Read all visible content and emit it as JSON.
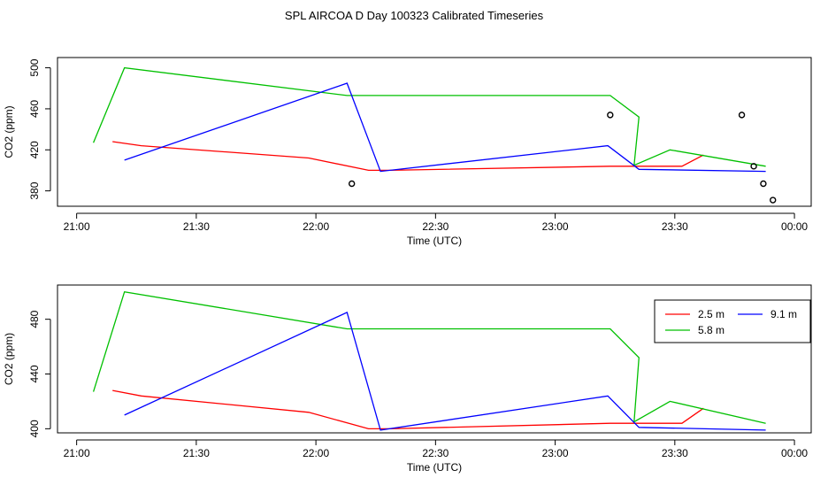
{
  "title": "SPL AIRCOA D  Day 100323  Calibrated Timeseries",
  "colors": {
    "2.5 m": "#ff0000",
    "5.8 m": "#00c000",
    "9.1 m": "#0000ff",
    "axes": "#000000"
  },
  "chart_data": [
    {
      "type": "line",
      "title": "SPL AIRCOA D  Day 100323  Calibrated Timeseries",
      "xlabel": "Time (UTC)",
      "ylabel": "CO2 (ppm)",
      "x_unit": "hours UTC",
      "xlim": [
        20.92,
        24.07
      ],
      "ylim": [
        365,
        510
      ],
      "x_ticks": [
        21.0,
        21.5,
        22.0,
        22.5,
        23.0,
        23.5,
        24.0
      ],
      "x_tick_labels": [
        "21:00",
        "21:30",
        "22:00",
        "22:30",
        "23:00",
        "23:30",
        "00:00"
      ],
      "y_ticks": [
        380,
        420,
        460,
        500
      ],
      "y_tick_labels": [
        "380",
        "420",
        "460",
        "500"
      ],
      "grid": false,
      "series": [
        {
          "name": "2.5 m",
          "color": "#ff0000",
          "x": [
            21.15,
            21.27,
            21.97,
            22.22,
            22.31,
            23.23,
            23.53,
            23.62
          ],
          "y": [
            428,
            424,
            412,
            400,
            400,
            404,
            404,
            415
          ]
        },
        {
          "name": "5.8 m",
          "color": "#00c000",
          "x": [
            21.07,
            21.2,
            22.13,
            23.23,
            23.35,
            23.33,
            23.48,
            23.88
          ],
          "y": [
            427,
            500,
            473,
            473,
            452,
            405,
            420,
            404
          ]
        },
        {
          "name": "9.1 m",
          "color": "#0000ff",
          "x": [
            21.2,
            22.13,
            22.27,
            23.22,
            23.35,
            23.88
          ],
          "y": [
            410,
            485,
            399,
            424,
            401,
            399
          ]
        },
        {
          "name": "",
          "color": "#000000",
          "marker": "open-circle",
          "style": "points",
          "x": [
            22.15,
            23.23,
            23.78,
            23.83,
            23.87,
            23.91
          ],
          "y": [
            387,
            454,
            454,
            404,
            387,
            371
          ]
        }
      ]
    },
    {
      "type": "line",
      "xlabel": "Time (UTC)",
      "ylabel": "CO2 (ppm)",
      "x_unit": "hours UTC",
      "xlim": [
        20.92,
        24.07
      ],
      "ylim": [
        397,
        505
      ],
      "x_ticks": [
        21.0,
        21.5,
        22.0,
        22.5,
        23.0,
        23.5,
        24.0
      ],
      "x_tick_labels": [
        "21:00",
        "21:30",
        "22:00",
        "22:30",
        "23:00",
        "23:30",
        "00:00"
      ],
      "y_ticks": [
        400,
        440,
        480
      ],
      "y_tick_labels": [
        "400",
        "440",
        "480"
      ],
      "grid": false,
      "legend": {
        "placement": "top-right",
        "entries": [
          {
            "label": "2.5 m",
            "color": "#ff0000"
          },
          {
            "label": "9.1 m",
            "color": "#0000ff"
          },
          {
            "label": "5.8 m",
            "color": "#00c000"
          }
        ]
      },
      "series": [
        {
          "name": "2.5 m",
          "color": "#ff0000",
          "x": [
            21.15,
            21.27,
            21.97,
            22.22,
            22.31,
            23.23,
            23.53,
            23.62
          ],
          "y": [
            428,
            424,
            412,
            400,
            400,
            404,
            404,
            415
          ]
        },
        {
          "name": "5.8 m",
          "color": "#00c000",
          "x": [
            21.07,
            21.2,
            22.13,
            23.23,
            23.35,
            23.33,
            23.48,
            23.88
          ],
          "y": [
            427,
            500,
            473,
            473,
            452,
            405,
            420,
            404
          ]
        },
        {
          "name": "9.1 m",
          "color": "#0000ff",
          "x": [
            21.2,
            22.13,
            22.27,
            23.22,
            23.35,
            23.88
          ],
          "y": [
            410,
            485,
            399,
            424,
            401,
            399
          ]
        }
      ]
    }
  ]
}
